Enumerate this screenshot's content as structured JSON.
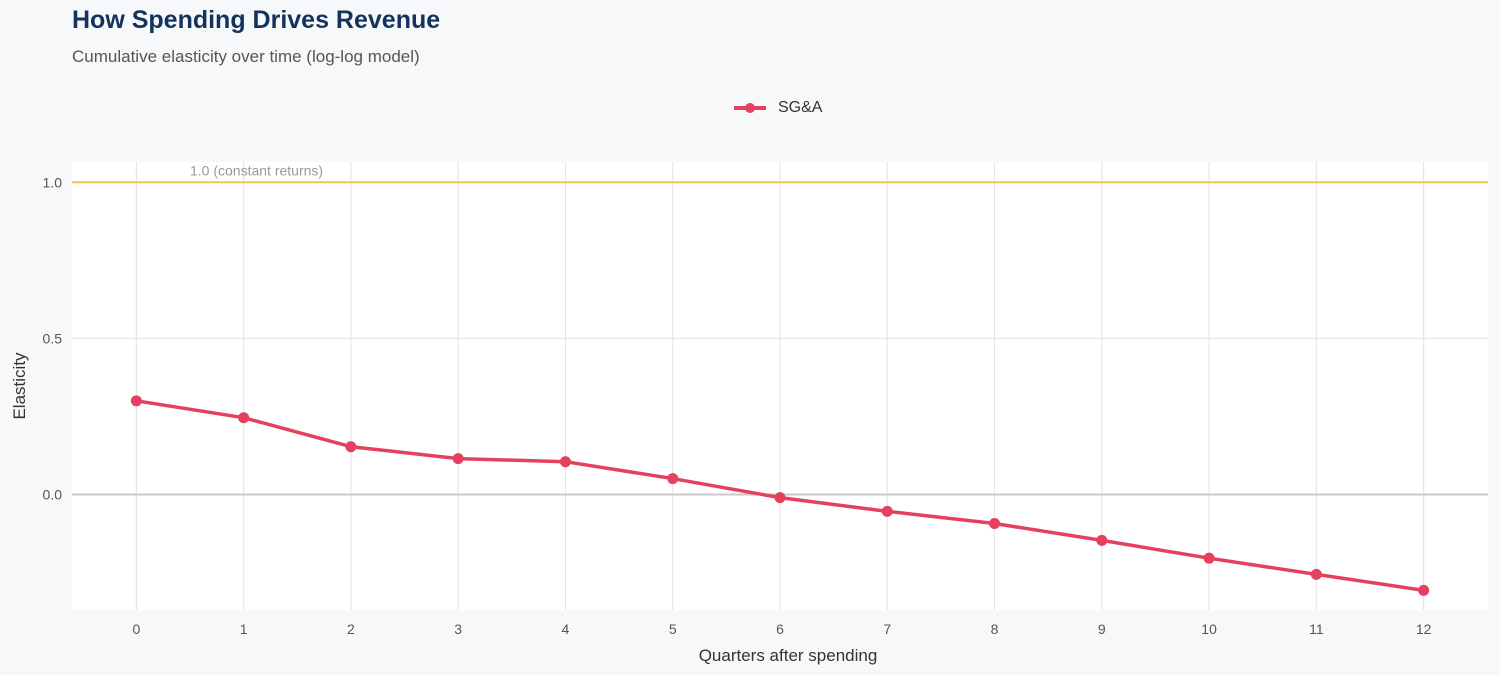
{
  "chart_data": {
    "type": "line",
    "title": "How Spending Drives Revenue",
    "subtitle": "Cumulative elasticity over time (log-log model)",
    "xlabel": "Quarters after spending",
    "ylabel": "Elasticity",
    "x": [
      0,
      1,
      2,
      3,
      4,
      5,
      6,
      7,
      8,
      9,
      10,
      11,
      12
    ],
    "xticks": [
      "0",
      "1",
      "2",
      "3",
      "4",
      "5",
      "6",
      "7",
      "8",
      "9",
      "10",
      "11",
      "12"
    ],
    "yticks": [
      {
        "value": 0.0,
        "label": "0.0"
      },
      {
        "value": 0.5,
        "label": "0.5"
      },
      {
        "value": 1.0,
        "label": "1.0"
      }
    ],
    "xlim": [
      -0.6,
      12.6
    ],
    "ylim": [
      -0.37,
      1.065
    ],
    "grid": true,
    "legend_position": "top",
    "series": [
      {
        "name": "SG&A",
        "color": "#e5405e",
        "values": [
          0.3,
          0.246,
          0.153,
          0.115,
          0.105,
          0.051,
          -0.01,
          -0.054,
          -0.093,
          -0.147,
          -0.204,
          -0.256,
          -0.307
        ]
      }
    ],
    "reference_line": {
      "value": 1.0,
      "label": "1.0 (constant returns)",
      "color": "#f2c553"
    },
    "zero_line_color": "#c8c8c8"
  }
}
